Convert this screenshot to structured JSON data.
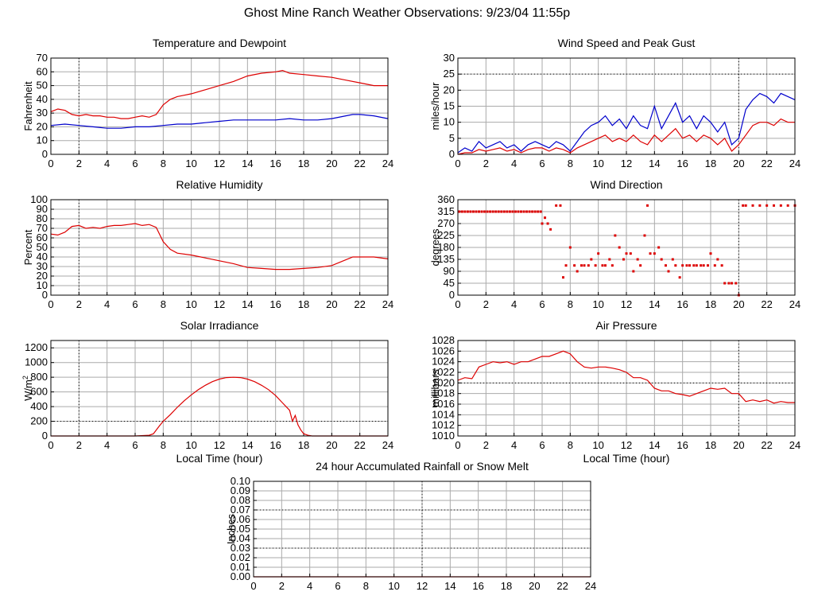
{
  "page_title": "Ghost Mine Ranch Weather Observations: 9/23/04 11:55p",
  "colors": {
    "red": "#dd0000",
    "blue": "#0000cc",
    "grid": "#aaaaaa",
    "frame": "#000000"
  },
  "chart_data": [
    {
      "type": "line",
      "title": "Temperature and Dewpoint",
      "ylabel": "Fahrenheit",
      "xlabel": "",
      "xlim": [
        0,
        24
      ],
      "ylim": [
        0,
        70
      ],
      "xticks": [
        0,
        2,
        4,
        6,
        8,
        10,
        12,
        14,
        16,
        18,
        20,
        22,
        24
      ],
      "yticks": [
        0,
        10,
        20,
        30,
        40,
        50,
        60,
        70
      ],
      "grid": true,
      "series": [
        {
          "color": "#dd0000",
          "x": [
            0,
            0.5,
            1,
            1.5,
            2,
            2.5,
            3,
            3.5,
            4,
            4.5,
            5,
            5.5,
            6,
            6.5,
            7,
            7.5,
            8,
            8.5,
            9,
            9.5,
            10,
            11,
            12,
            13,
            14,
            15,
            16,
            16.5,
            17,
            18,
            19,
            20,
            21,
            22,
            23,
            24
          ],
          "y": [
            31,
            33,
            32,
            29,
            28,
            29,
            28,
            28,
            27,
            27,
            26,
            26,
            27,
            28,
            27,
            29,
            36,
            40,
            42,
            43,
            44,
            47,
            50,
            53,
            57,
            59,
            60,
            61,
            59,
            58,
            57,
            56,
            54,
            52,
            50,
            50
          ]
        },
        {
          "color": "#0000cc",
          "x": [
            0,
            1,
            2,
            3,
            4,
            5,
            6,
            7,
            8,
            9,
            10,
            11,
            12,
            13,
            14,
            15,
            16,
            17,
            18,
            19,
            20,
            21,
            21.5,
            22,
            23,
            24
          ],
          "y": [
            21,
            22,
            21,
            20,
            19,
            19,
            20,
            20,
            21,
            22,
            22,
            23,
            24,
            25,
            25,
            25,
            25,
            26,
            25,
            25,
            26,
            28,
            29,
            29,
            28,
            26
          ]
        }
      ]
    },
    {
      "type": "line",
      "title": "Wind Speed and Peak Gust",
      "ylabel": "miles/hour",
      "xlabel": "",
      "xlim": [
        0,
        24
      ],
      "ylim": [
        0,
        30
      ],
      "xticks": [
        0,
        2,
        4,
        6,
        8,
        10,
        12,
        14,
        16,
        18,
        20,
        22,
        24
      ],
      "yticks": [
        0,
        5,
        10,
        15,
        20,
        25,
        30
      ],
      "grid": true,
      "series": [
        {
          "color": "#0000cc",
          "x": [
            0,
            0.5,
            1,
            1.5,
            2,
            2.5,
            3,
            3.5,
            4,
            4.5,
            5,
            5.5,
            6,
            6.5,
            7,
            7.5,
            8,
            8.5,
            9,
            9.5,
            10,
            10.5,
            11,
            11.5,
            12,
            12.5,
            13,
            13.5,
            14,
            14.5,
            15,
            15.5,
            16,
            16.5,
            17,
            17.5,
            18,
            18.5,
            19,
            19.5,
            20,
            20.5,
            21,
            21.5,
            22,
            22.5,
            23,
            23.5,
            24
          ],
          "y": [
            0.5,
            2,
            1,
            4,
            2,
            3,
            4,
            2,
            3,
            1,
            3,
            4,
            3,
            2,
            4,
            3,
            1,
            4,
            7,
            9,
            10,
            12,
            9,
            11,
            8,
            12,
            9,
            8,
            15,
            8,
            12,
            16,
            10,
            12,
            8,
            12,
            10,
            7,
            10,
            3,
            5,
            14,
            17,
            19,
            18,
            16,
            19,
            18,
            17
          ]
        },
        {
          "color": "#dd0000",
          "x": [
            0,
            0.5,
            1,
            1.5,
            2,
            2.5,
            3,
            3.5,
            4,
            4.5,
            5,
            5.5,
            6,
            6.5,
            7,
            7.5,
            8,
            8.5,
            9,
            9.5,
            10,
            10.5,
            11,
            11.5,
            12,
            12.5,
            13,
            13.5,
            14,
            14.5,
            15,
            15.5,
            16,
            16.5,
            17,
            17.5,
            18,
            18.5,
            19,
            19.5,
            20,
            20.5,
            21,
            21.5,
            22,
            22.5,
            23,
            23.5,
            24
          ],
          "y": [
            0,
            0.5,
            0.5,
            1.5,
            1,
            1.5,
            2,
            1,
            1.5,
            0.5,
            1.5,
            2,
            2,
            1,
            2,
            1.5,
            0.5,
            2,
            3,
            4,
            5,
            6,
            4,
            5,
            4,
            6,
            4,
            3,
            6,
            4,
            6,
            8,
            5,
            6,
            4,
            6,
            5,
            3,
            5,
            1,
            3,
            6,
            9,
            10,
            10,
            9,
            11,
            10,
            10
          ]
        }
      ]
    },
    {
      "type": "line",
      "title": "Relative Humidity",
      "ylabel": "Percent",
      "xlabel": "",
      "xlim": [
        0,
        24
      ],
      "ylim": [
        0,
        100
      ],
      "xticks": [
        0,
        2,
        4,
        6,
        8,
        10,
        12,
        14,
        16,
        18,
        20,
        22,
        24
      ],
      "yticks": [
        0,
        10,
        20,
        30,
        40,
        50,
        60,
        70,
        80,
        90,
        100
      ],
      "grid": true,
      "series": [
        {
          "color": "#dd0000",
          "x": [
            0,
            0.5,
            1,
            1.5,
            2,
            2.5,
            3,
            3.5,
            4,
            4.5,
            5,
            5.5,
            6,
            6.5,
            7,
            7.5,
            8,
            8.5,
            9,
            10,
            11,
            12,
            13,
            14,
            15,
            16,
            17,
            18,
            19,
            20,
            21,
            21.5,
            22,
            23,
            24
          ],
          "y": [
            64,
            63,
            66,
            72,
            73,
            70,
            71,
            70,
            72,
            73,
            73,
            74,
            75,
            73,
            74,
            71,
            56,
            48,
            44,
            42,
            39,
            36,
            33,
            29,
            28,
            27,
            27,
            28,
            29,
            31,
            37,
            40,
            40,
            40,
            38
          ]
        }
      ]
    },
    {
      "type": "scatter",
      "title": "Wind Direction",
      "ylabel": "degrees",
      "xlabel": "",
      "xlim": [
        0,
        24
      ],
      "ylim": [
        0,
        360
      ],
      "xticks": [
        0,
        2,
        4,
        6,
        8,
        10,
        12,
        14,
        16,
        18,
        20,
        22,
        24
      ],
      "yticks": [
        0,
        45,
        90,
        135,
        180,
        225,
        270,
        315,
        360
      ],
      "grid": true,
      "series": [
        {
          "color": "#dd0000",
          "x": [
            0.1,
            0.3,
            0.5,
            0.7,
            0.9,
            1.1,
            1.3,
            1.5,
            1.7,
            1.9,
            2.1,
            2.3,
            2.5,
            2.7,
            2.9,
            3.1,
            3.3,
            3.5,
            3.7,
            3.9,
            4.1,
            4.3,
            4.5,
            4.7,
            4.9,
            5.1,
            5.3,
            5.5,
            5.7,
            5.9,
            6.0,
            6.2,
            6.4,
            6.6,
            7.0,
            7.3,
            7.5,
            7.7,
            8.0,
            8.3,
            8.5,
            8.8,
            9.0,
            9.3,
            9.5,
            9.8,
            10.0,
            10.3,
            10.5,
            10.8,
            11.0,
            11.2,
            11.5,
            11.8,
            12.0,
            12.3,
            12.5,
            12.8,
            13.0,
            13.3,
            13.5,
            13.7,
            14.0,
            14.3,
            14.5,
            14.8,
            15.0,
            15.3,
            15.5,
            15.8,
            16.0,
            16.3,
            16.5,
            16.8,
            17.0,
            17.3,
            17.5,
            17.8,
            18.0,
            18.3,
            18.5,
            18.8,
            19.0,
            19.3,
            19.5,
            19.8,
            20.0,
            20.3,
            20.5,
            21.0,
            21.5,
            22.0,
            22.5,
            23.0,
            23.5,
            24.0
          ],
          "y": [
            315,
            315,
            315,
            315,
            315,
            315,
            315,
            315,
            315,
            315,
            315,
            315,
            315,
            315,
            315,
            315,
            315,
            315,
            315,
            315,
            315,
            315,
            315,
            315,
            315,
            315,
            315,
            315,
            315,
            315,
            270,
            292,
            270,
            248,
            338,
            338,
            67,
            112,
            180,
            112,
            90,
            112,
            112,
            112,
            135,
            112,
            157,
            112,
            112,
            135,
            112,
            225,
            180,
            135,
            157,
            157,
            90,
            135,
            112,
            225,
            338,
            157,
            157,
            180,
            135,
            112,
            90,
            135,
            112,
            67,
            112,
            112,
            112,
            112,
            112,
            112,
            112,
            112,
            157,
            112,
            135,
            112,
            45,
            45,
            45,
            45,
            0,
            338,
            338,
            338,
            338,
            338,
            338,
            338,
            338,
            338
          ]
        }
      ]
    },
    {
      "type": "line",
      "title": "Solar Irradiance",
      "ylabel": "W/m",
      "ylabel_superscript": "2",
      "xlabel": "Local Time (hour)",
      "xlim": [
        0,
        24
      ],
      "ylim": [
        0,
        1300
      ],
      "xticks": [
        0,
        2,
        4,
        6,
        8,
        10,
        12,
        14,
        16,
        18,
        20,
        22,
        24
      ],
      "yticks": [
        0,
        200,
        400,
        600,
        800,
        1000,
        1200
      ],
      "grid": true,
      "series": [
        {
          "color": "#dd0000",
          "x": [
            0,
            1,
            2,
            3,
            4,
            5,
            6,
            7,
            7.3,
            7.7,
            8,
            8.5,
            9,
            9.5,
            10,
            10.5,
            11,
            11.5,
            12,
            12.5,
            13,
            13.5,
            14,
            14.5,
            15,
            15.5,
            16,
            16.5,
            17,
            17.2,
            17.4,
            17.6,
            17.8,
            18,
            18.3,
            18.6,
            19,
            20,
            21,
            22,
            23,
            24
          ],
          "y": [
            0,
            0,
            0,
            0,
            0,
            0,
            0,
            10,
            30,
            130,
            200,
            290,
            390,
            480,
            560,
            630,
            690,
            740,
            775,
            795,
            800,
            795,
            775,
            740,
            690,
            630,
            550,
            450,
            350,
            200,
            280,
            150,
            80,
            30,
            10,
            0,
            0,
            0,
            0,
            0,
            0,
            0
          ]
        }
      ]
    },
    {
      "type": "line",
      "title": "Air Pressure",
      "ylabel": "millibars",
      "xlabel": "Local Time (hour)",
      "xlim": [
        0,
        24
      ],
      "ylim": [
        1010,
        1028
      ],
      "xticks": [
        0,
        2,
        4,
        6,
        8,
        10,
        12,
        14,
        16,
        18,
        20,
        22,
        24
      ],
      "yticks": [
        1010,
        1012,
        1014,
        1016,
        1018,
        1020,
        1022,
        1024,
        1026,
        1028
      ],
      "grid": true,
      "series": [
        {
          "color": "#dd0000",
          "x": [
            0,
            0.5,
            1,
            1.5,
            2,
            2.5,
            3,
            3.5,
            4,
            4.5,
            5,
            5.5,
            6,
            6.5,
            7,
            7.5,
            8,
            8.5,
            9,
            9.5,
            10,
            10.5,
            11,
            11.5,
            12,
            12.5,
            13,
            13.5,
            14,
            14.5,
            15,
            15.5,
            16,
            16.5,
            17,
            17.5,
            18,
            18.5,
            19,
            19.5,
            20,
            20.5,
            21,
            21.5,
            22,
            22.5,
            23,
            23.5,
            24
          ],
          "y": [
            1020.5,
            1021,
            1020.8,
            1023,
            1023.5,
            1024,
            1023.8,
            1024,
            1023.5,
            1024,
            1024,
            1024.5,
            1025,
            1025,
            1025.5,
            1026,
            1025.5,
            1024,
            1023,
            1022.8,
            1023,
            1023,
            1022.8,
            1022.5,
            1022,
            1021,
            1021,
            1020.5,
            1019,
            1018.5,
            1018.5,
            1018,
            1017.8,
            1017.5,
            1018,
            1018.5,
            1019,
            1018.8,
            1019,
            1018,
            1018,
            1016.5,
            1016.8,
            1016.5,
            1016.8,
            1016.2,
            1016.5,
            1016.3,
            1016.3
          ]
        }
      ]
    },
    {
      "type": "line",
      "title": "24 hour Accumulated Rainfall or Snow Melt",
      "ylabel": "Inches",
      "xlabel": "",
      "xlim": [
        0,
        24
      ],
      "ylim": [
        0,
        0.1
      ],
      "xticks": [
        0,
        2,
        4,
        6,
        8,
        10,
        12,
        14,
        16,
        18,
        20,
        22,
        24
      ],
      "yticks": [
        "0.00",
        "0.01",
        "0.02",
        "0.03",
        "0.04",
        "0.05",
        "0.06",
        "0.07",
        "0.08",
        "0.09",
        "0.10"
      ],
      "grid": true,
      "series": [
        {
          "color": "#dd0000",
          "x": [
            0,
            24
          ],
          "y": [
            0,
            0
          ]
        }
      ]
    }
  ]
}
